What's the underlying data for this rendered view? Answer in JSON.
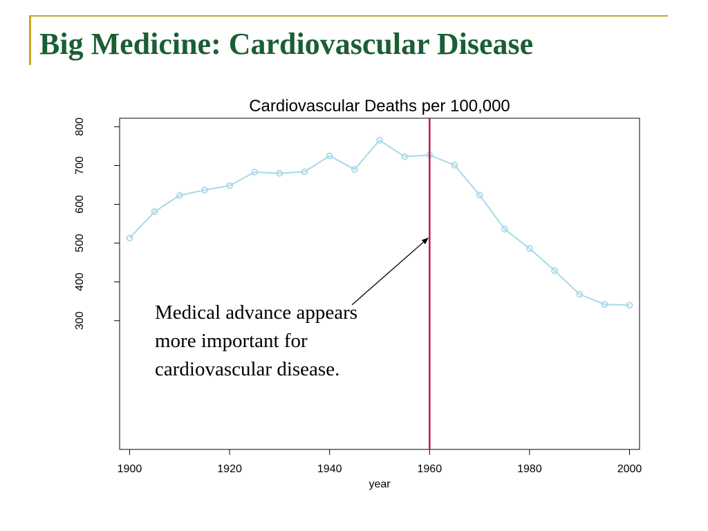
{
  "slide": {
    "title": "Big Medicine: Cardiovascular Disease",
    "annotation_lines": [
      "Medical advance appears",
      "more important for",
      "cardiovascular disease."
    ]
  },
  "colors": {
    "frame_accent": "#c9a227",
    "title": "#1a5e35",
    "series": "#a8d8e8",
    "vline": "#c0184a"
  },
  "chart_data": {
    "type": "line",
    "title": "Cardiovascular Deaths per 100,000",
    "xlabel": "year",
    "ylabel": "",
    "xlim": [
      1898,
      2002
    ],
    "ylim": [
      -32,
      822
    ],
    "x_ticks": [
      1900,
      1920,
      1940,
      1960,
      1980,
      2000
    ],
    "y_ticks": [
      300,
      400,
      500,
      600,
      700,
      800
    ],
    "grid": false,
    "legend": "none",
    "series": [
      {
        "x": [
          1900,
          1905,
          1910,
          1915,
          1920,
          1925,
          1930,
          1935,
          1940,
          1945,
          1950,
          1955,
          1960,
          1965,
          1970,
          1975,
          1980,
          1985,
          1990,
          1995,
          2000
        ],
        "y": [
          513,
          581,
          623,
          637,
          648,
          683,
          680,
          684,
          725,
          690,
          765,
          723,
          727,
          701,
          624,
          536,
          486,
          429,
          368,
          342,
          340
        ],
        "marker": "circle"
      }
    ],
    "reference_line": {
      "orientation": "vertical",
      "x": 1960
    },
    "arrow_annotation": {
      "from": {
        "x": 1944.5,
        "y": 341
      },
      "to": {
        "x": 1959.7,
        "y": 513
      }
    }
  }
}
